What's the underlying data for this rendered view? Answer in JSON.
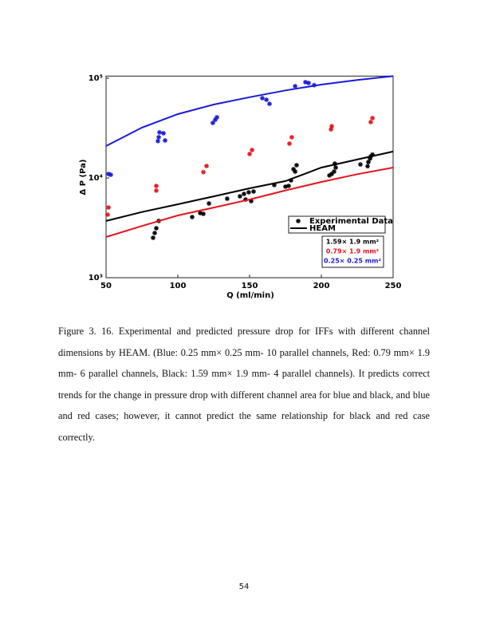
{
  "chart_data": {
    "type": "scatter",
    "xlabel": "Q (ml/min)",
    "ylabel": "Δ P (Pa)",
    "xlim": [
      50,
      250
    ],
    "xticks": [
      50,
      100,
      150,
      200,
      250
    ],
    "ylim": [
      1000,
      105000
    ],
    "yscale": "log",
    "yticks": [
      {
        "value": 1000,
        "label": "10³"
      },
      {
        "value": 10000,
        "label": "10⁴"
      },
      {
        "value": 100000,
        "label": "10⁵"
      }
    ],
    "legend": {
      "marker_label": "Experimental Data",
      "line_label": "HEAM"
    },
    "model_x": [
      50,
      75,
      100,
      125,
      150,
      175,
      200,
      225,
      250
    ],
    "series": [
      {
        "name": "1.59× 1.9 mm²",
        "color": "#000000",
        "x": [
          82.8,
          83.9,
          85,
          86.7,
          110,
          115.6,
          117.8,
          121.7,
          134.4,
          143.3,
          146.1,
          147.2,
          149.4,
          151.1,
          152.8,
          167.2,
          175,
          177.2,
          178.9,
          180.6,
          182.8,
          181.7,
          205.6,
          207.2,
          208.9,
          210,
          209.4,
          227.2,
          232.2,
          232.8,
          233.9,
          235.6,
          234.4
        ],
        "values": [
          2512,
          2805,
          3131,
          3702,
          4057,
          4446,
          4365,
          5546,
          6194,
          6546,
          6918,
          6081,
          7176,
          5857,
          7311,
          8492,
          8185,
          8318,
          9441,
          12245,
          13428,
          11588,
          10593,
          10965,
          11588,
          12706,
          13932,
          13646,
          13120,
          14454,
          15596,
          17140,
          16443
        ],
        "model_values": [
          3702,
          4550,
          5445,
          6530,
          7870,
          9300,
          12706,
          15300,
          18394
        ]
      },
      {
        "name": "0.79× 1.9 mm²",
        "color": "#e8141b",
        "x": [
          51.7,
          51.1,
          85,
          85,
          117.8,
          120,
          150,
          151.7,
          177.8,
          179.4,
          206.7,
          207.2,
          234.4,
          235.6
        ],
        "values": [
          5058,
          4282,
          8318,
          7472,
          11429,
          13183,
          17378,
          19055,
          22080,
          25595,
          30690,
          32968,
          36308,
          39810
        ],
        "model_values": [
          2559,
          3300,
          4207,
          5050,
          6081,
          7500,
          9120,
          10900,
          12706
        ]
      },
      {
        "name": "0.25× 0.25 mm²",
        "color": "#1a1adc",
        "x": [
          51.7,
          53.3,
          86.1,
          87.2,
          90,
          86.7,
          91.1,
          124.4,
          126.1,
          127.2,
          158.9,
          161.7,
          163.9,
          181.7,
          188.9,
          191.1,
          195
        ],
        "values": [
          10965,
          10765,
          23442,
          28642,
          28050,
          25645,
          23768,
          35645,
          38371,
          40551,
          63096,
          60814,
          55335,
          83176,
          91201,
          89536,
          85114
        ],
        "model_values": [
          20893,
          32000,
          43652,
          54500,
          64565,
          75500,
          86298,
          96000,
          105000
        ]
      }
    ]
  },
  "caption": "Figure 3. 16. Experimental and predicted pressure drop for IFFs with different channel dimensions by HEAM. (Blue: 0.25 mm× 0.25 mm- 10 parallel channels, Red: 0.79 mm× 1.9 mm- 6 parallel channels, Black: 1.59 mm× 1.9 mm- 4 parallel channels). It predicts correct trends for the change in pressure drop with different channel area for blue and black, and blue and red cases; however, it cannot predict the same relationship for black and red case correctly.",
  "page_number": "54"
}
